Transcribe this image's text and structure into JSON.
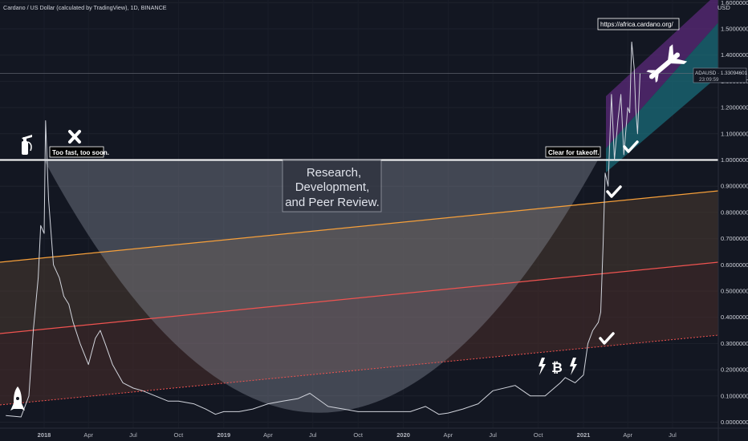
{
  "header": {
    "title": "Cardano / US Dollar (calculated by TradingView), 1D, BINANCE"
  },
  "price_label": {
    "symbol_value": "ADAUSD · 1.33094601",
    "countdown": "23:09:59"
  },
  "axis_unit": "USD",
  "annotations": {
    "research_box": [
      "Research,",
      "Development,",
      "and Peer Review."
    ],
    "too_fast": "Too fast, too soon.",
    "clear_takeoff": "Clear for takeoff.",
    "url": "https://africa.cardano.org/",
    "bitcoin_symbol": "₿"
  },
  "colors": {
    "background": "#131722",
    "price_line": "#d1d4dc",
    "orange_line": "#f7a03a",
    "red_line": "#f05350",
    "purple_channel": "#5b2a7a",
    "teal_channel": "#1a6b78",
    "arc_fill": "#9aa0b0"
  },
  "chart_data": {
    "type": "line",
    "title": "Cardano / US Dollar (calculated by TradingView), 1D, BINANCE",
    "xlabel": "",
    "ylabel": "USD",
    "ylim": [
      -0.05,
      1.6
    ],
    "x_ticks": [
      "2018",
      "Apr",
      "Jul",
      "Oct",
      "2019",
      "Apr",
      "Jul",
      "Oct",
      "2020",
      "Apr",
      "Jul",
      "Oct",
      "2021",
      "Apr",
      "Jul"
    ],
    "y_ticks": [
      "1.60000000",
      "1.50000000",
      "1.40000000",
      "1.30000000",
      "1.20000000",
      "1.10000000",
      "1.00000000",
      "0.90000000",
      "0.80000000",
      "0.70000000",
      "0.60000000",
      "0.50000000",
      "0.40000000",
      "0.30000000",
      "0.20000000",
      "0.10000000",
      "0.00000000"
    ],
    "y_tick_values": [
      1.6,
      1.5,
      1.4,
      1.3,
      1.2,
      1.1,
      1.0,
      0.9,
      0.8,
      0.7,
      0.6,
      0.5,
      0.4,
      0.3,
      0.2,
      0.1,
      0.0
    ],
    "series": [
      {
        "x": [
          "2017-10-15",
          "2017-11-15",
          "2017-12-01",
          "2017-12-10",
          "2017-12-20",
          "2017-12-25",
          "2018-01-01",
          "2018-01-04",
          "2018-01-10",
          "2018-01-20",
          "2018-02-01",
          "2018-02-10",
          "2018-02-20",
          "2018-03-01",
          "2018-03-15",
          "2018-04-01",
          "2018-04-15",
          "2018-04-25",
          "2018-05-05",
          "2018-05-20",
          "2018-06-10",
          "2018-07-01",
          "2018-07-20",
          "2018-08-15",
          "2018-09-10",
          "2018-10-01",
          "2018-11-01",
          "2018-11-25",
          "2018-12-15",
          "2019-01-01",
          "2019-02-01",
          "2019-03-01",
          "2019-04-01",
          "2019-05-01",
          "2019-06-01",
          "2019-06-25",
          "2019-08-01",
          "2019-09-01",
          "2019-10-01",
          "2019-11-01",
          "2019-12-15",
          "2020-01-15",
          "2020-02-15",
          "2020-03-13",
          "2020-04-01",
          "2020-05-01",
          "2020-06-01",
          "2020-07-01",
          "2020-08-15",
          "2020-09-15",
          "2020-10-15",
          "2020-11-15",
          "2020-11-25",
          "2020-12-15",
          "2021-01-01",
          "2021-01-10",
          "2021-01-20",
          "2021-01-31",
          "2021-02-05",
          "2021-02-10",
          "2021-02-14",
          "2021-02-20",
          "2021-02-27",
          "2021-03-05",
          "2021-03-12",
          "2021-03-18",
          "2021-03-24",
          "2021-04-01",
          "2021-04-05",
          "2021-04-09",
          "2021-04-14",
          "2021-04-17",
          "2021-04-21",
          "2021-04-26"
        ],
        "values": [
          0.025,
          0.02,
          0.1,
          0.35,
          0.55,
          0.75,
          0.72,
          1.15,
          0.85,
          0.6,
          0.55,
          0.48,
          0.45,
          0.38,
          0.3,
          0.22,
          0.32,
          0.35,
          0.3,
          0.22,
          0.15,
          0.13,
          0.12,
          0.1,
          0.08,
          0.08,
          0.07,
          0.05,
          0.03,
          0.04,
          0.04,
          0.05,
          0.07,
          0.08,
          0.09,
          0.11,
          0.06,
          0.05,
          0.04,
          0.04,
          0.04,
          0.04,
          0.06,
          0.03,
          0.035,
          0.05,
          0.07,
          0.12,
          0.14,
          0.1,
          0.1,
          0.15,
          0.17,
          0.15,
          0.18,
          0.3,
          0.35,
          0.38,
          0.42,
          0.68,
          0.95,
          0.9,
          1.25,
          1.0,
          1.15,
          1.25,
          1.02,
          1.2,
          1.18,
          1.45,
          1.35,
          1.2,
          1.1,
          1.33
        ]
      }
    ]
  }
}
